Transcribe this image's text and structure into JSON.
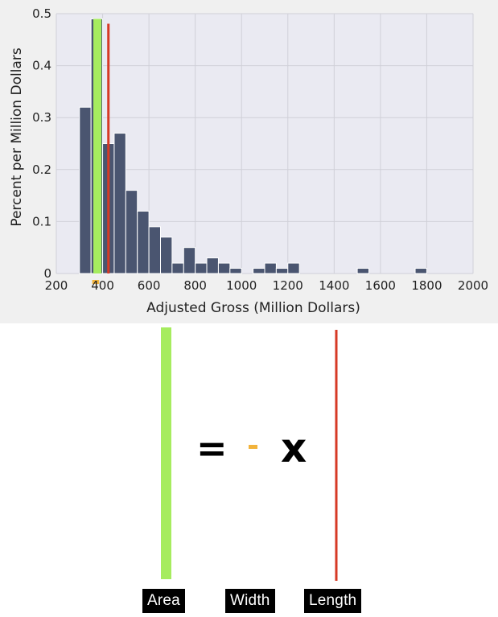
{
  "chart_data": {
    "type": "bar",
    "xlabel": "Adjusted Gross (Million Dollars)",
    "ylabel": "Percent per Million Dollars",
    "xlim": [
      200,
      2000
    ],
    "ylim": [
      0,
      0.5
    ],
    "xticks": [
      "200",
      "400",
      "600",
      "800",
      "1000",
      "1200",
      "1400",
      "1600",
      "1800",
      "2000"
    ],
    "yticks": [
      "0",
      "0.1",
      "0.2",
      "0.3",
      "0.4",
      "0.5"
    ],
    "grid": true,
    "bin_width": 50,
    "bins": [
      {
        "x0": 300,
        "x1": 350,
        "value": 0.32
      },
      {
        "x0": 350,
        "x1": 400,
        "value": 0.49
      },
      {
        "x0": 400,
        "x1": 450,
        "value": 0.25
      },
      {
        "x0": 450,
        "x1": 500,
        "value": 0.27
      },
      {
        "x0": 500,
        "x1": 550,
        "value": 0.16
      },
      {
        "x0": 550,
        "x1": 600,
        "value": 0.12
      },
      {
        "x0": 600,
        "x1": 650,
        "value": 0.09
      },
      {
        "x0": 650,
        "x1": 700,
        "value": 0.07
      },
      {
        "x0": 700,
        "x1": 750,
        "value": 0.02
      },
      {
        "x0": 750,
        "x1": 800,
        "value": 0.05
      },
      {
        "x0": 800,
        "x1": 850,
        "value": 0.02
      },
      {
        "x0": 850,
        "x1": 900,
        "value": 0.03
      },
      {
        "x0": 900,
        "x1": 950,
        "value": 0.02
      },
      {
        "x0": 950,
        "x1": 1000,
        "value": 0.01
      },
      {
        "x0": 1050,
        "x1": 1100,
        "value": 0.01
      },
      {
        "x0": 1100,
        "x1": 1150,
        "value": 0.02
      },
      {
        "x0": 1150,
        "x1": 1200,
        "value": 0.01
      },
      {
        "x0": 1200,
        "x1": 1250,
        "value": 0.02
      },
      {
        "x0": 1500,
        "x1": 1550,
        "value": 0.01
      },
      {
        "x0": 1750,
        "x1": 1800,
        "value": 0.01
      }
    ],
    "highlight": {
      "area_bar": {
        "x0": 360,
        "x1": 395,
        "value": 0.49
      },
      "length_line_x": 425,
      "width_marker": {
        "x0": 355,
        "x1": 385
      }
    },
    "colors": {
      "bars": "#4a5570",
      "area": "#a6ec5f",
      "length": "#d63a25",
      "width": "#f2b33b",
      "plot_bg": "#eaeaf2",
      "figure_bg": "#f0f0f0",
      "grid": "#ffffff"
    }
  },
  "equation": {
    "equals": "=",
    "times": "x"
  },
  "labels": {
    "area": "Area",
    "width": "Width",
    "length": "Length"
  }
}
